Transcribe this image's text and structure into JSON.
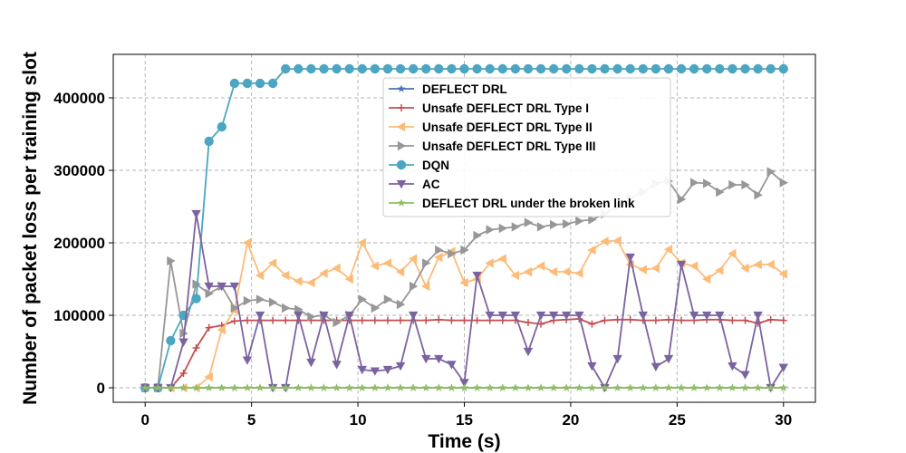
{
  "chart_data": {
    "type": "line",
    "title": "",
    "xlabel": "Time (s)",
    "ylabel": "Number of packet loss per training slot",
    "xlim": [
      -1.5,
      31.5
    ],
    "ylim": [
      -20000,
      460000
    ],
    "xticks": [
      0,
      5,
      10,
      15,
      20,
      25,
      30
    ],
    "yticks": [
      0,
      100000,
      200000,
      300000,
      400000
    ],
    "grid": true,
    "legend_position": "upper-center",
    "x": [
      0,
      0.6,
      1.2,
      1.8,
      2.4,
      3.0,
      3.6,
      4.2,
      4.8,
      5.4,
      6.0,
      6.6,
      7.2,
      7.8,
      8.4,
      9.0,
      9.6,
      10.2,
      10.8,
      11.4,
      12.0,
      12.6,
      13.2,
      13.8,
      14.4,
      15.0,
      15.6,
      16.2,
      16.8,
      17.4,
      18.0,
      18.6,
      19.2,
      19.8,
      20.4,
      21.0,
      21.6,
      22.2,
      22.8,
      23.4,
      24.0,
      24.6,
      25.2,
      25.8,
      26.4,
      27.0,
      27.6,
      28.2,
      28.8,
      29.4,
      30.0
    ],
    "series": [
      {
        "name": "DEFLECT DRL",
        "color": "#4c72b0",
        "marker": "star",
        "values": [
          0,
          0,
          0,
          0,
          0,
          0,
          0,
          0,
          0,
          0,
          0,
          0,
          0,
          0,
          0,
          0,
          0,
          0,
          0,
          0,
          0,
          0,
          0,
          0,
          0,
          0,
          0,
          0,
          0,
          0,
          0,
          0,
          0,
          0,
          0,
          0,
          0,
          0,
          0,
          0,
          0,
          0,
          0,
          0,
          0,
          0,
          0,
          0,
          0,
          0,
          0
        ]
      },
      {
        "name": "Unsafe DEFLECT DRL Type I",
        "color": "#c44e52",
        "marker": "plus",
        "values": [
          0,
          0,
          0,
          20000,
          55000,
          83000,
          86000,
          92000,
          93000,
          93000,
          93000,
          93000,
          93000,
          93000,
          93000,
          93000,
          93000,
          93000,
          93000,
          93000,
          93000,
          93000,
          93000,
          94000,
          93000,
          93000,
          93000,
          93000,
          93000,
          93000,
          90000,
          88000,
          93000,
          94000,
          95000,
          88000,
          93000,
          94000,
          94000,
          93000,
          93000,
          94000,
          93000,
          93000,
          94000,
          94000,
          93000,
          93000,
          89000,
          94000,
          93000
        ]
      },
      {
        "name": "Unsafe DEFLECT DRL Type II",
        "color": "#fdbb78",
        "marker": "triangle-left",
        "values": [
          0,
          0,
          0,
          0,
          0,
          15000,
          80000,
          107000,
          200000,
          155000,
          172000,
          155000,
          147000,
          145000,
          158000,
          165000,
          150000,
          200000,
          168000,
          172000,
          160000,
          178000,
          140000,
          180000,
          188000,
          145000,
          150000,
          172000,
          178000,
          155000,
          160000,
          168000,
          160000,
          160000,
          158000,
          190000,
          202000,
          203000,
          170000,
          163000,
          165000,
          191000,
          172000,
          168000,
          150000,
          162000,
          185000,
          165000,
          170000,
          170000,
          157000
        ]
      },
      {
        "name": "Unsafe DEFLECT DRL Type III",
        "color": "#979797",
        "marker": "triangle-right",
        "values": [
          0,
          0,
          175000,
          75000,
          143000,
          130000,
          140000,
          110000,
          120000,
          122000,
          118000,
          110000,
          108000,
          98000,
          100000,
          90000,
          100000,
          122000,
          110000,
          122000,
          115000,
          140000,
          172000,
          190000,
          185000,
          190000,
          210000,
          218000,
          220000,
          222000,
          228000,
          222000,
          225000,
          226000,
          230000,
          232000,
          240000,
          250000,
          262000,
          270000,
          282000,
          285000,
          260000,
          283000,
          282000,
          270000,
          280000,
          280000,
          266000,
          298000,
          283000
        ]
      },
      {
        "name": "DQN",
        "color": "#4ca6c1",
        "marker": "circle",
        "values": [
          0,
          0,
          65000,
          100000,
          123000,
          340000,
          360000,
          420000,
          420000,
          420000,
          420000,
          440000,
          440000,
          440000,
          440000,
          440000,
          440000,
          440000,
          440000,
          440000,
          440000,
          440000,
          440000,
          440000,
          440000,
          440000,
          440000,
          440000,
          440000,
          440000,
          440000,
          440000,
          440000,
          440000,
          440000,
          440000,
          440000,
          440000,
          440000,
          440000,
          440000,
          440000,
          440000,
          440000,
          440000,
          440000,
          440000,
          440000,
          440000,
          440000,
          440000
        ]
      },
      {
        "name": "AC",
        "color": "#7b63a0",
        "marker": "triangle-down",
        "values": [
          0,
          0,
          0,
          63000,
          240000,
          140000,
          140000,
          140000,
          38000,
          100000,
          0,
          0,
          100000,
          35000,
          100000,
          32000,
          100000,
          25000,
          23000,
          25000,
          30000,
          100000,
          40000,
          40000,
          32000,
          7000,
          155000,
          100000,
          100000,
          100000,
          50000,
          100000,
          100000,
          100000,
          100000,
          30000,
          0,
          40000,
          180000,
          100000,
          29000,
          40000,
          170000,
          100000,
          100000,
          100000,
          30000,
          18000,
          100000,
          0,
          28000
        ]
      },
      {
        "name": "DEFLECT DRL under the broken link",
        "color": "#8fbf60",
        "marker": "star",
        "values": [
          0,
          0,
          0,
          0,
          0,
          0,
          0,
          0,
          0,
          0,
          0,
          0,
          0,
          0,
          0,
          0,
          0,
          0,
          0,
          0,
          0,
          0,
          0,
          0,
          0,
          0,
          0,
          0,
          0,
          0,
          0,
          0,
          0,
          0,
          0,
          0,
          0,
          0,
          0,
          0,
          0,
          0,
          0,
          0,
          0,
          0,
          0,
          0,
          0,
          0,
          0
        ]
      }
    ]
  }
}
